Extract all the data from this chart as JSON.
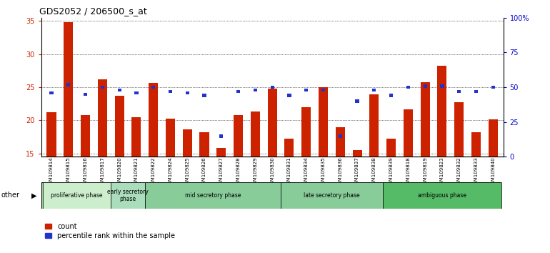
{
  "title": "GDS2052 / 206500_s_at",
  "samples": [
    "GSM109814",
    "GSM109815",
    "GSM109816",
    "GSM109817",
    "GSM109820",
    "GSM109821",
    "GSM109822",
    "GSM109824",
    "GSM109825",
    "GSM109826",
    "GSM109827",
    "GSM109828",
    "GSM109829",
    "GSM109830",
    "GSM109831",
    "GSM109834",
    "GSM109835",
    "GSM109836",
    "GSM109837",
    "GSM109838",
    "GSM109839",
    "GSM109818",
    "GSM109819",
    "GSM109823",
    "GSM109832",
    "GSM109833",
    "GSM109840"
  ],
  "count_values": [
    21.2,
    34.8,
    20.8,
    26.2,
    23.7,
    20.5,
    25.7,
    20.3,
    18.6,
    18.2,
    15.8,
    20.8,
    21.4,
    24.8,
    17.2,
    22.0,
    25.0,
    19.0,
    15.5,
    23.9,
    17.2,
    21.7,
    25.8,
    28.3,
    22.8,
    18.2,
    20.2
  ],
  "percentile_values": [
    46,
    52,
    45,
    50,
    48,
    46,
    50,
    47,
    46,
    44,
    15,
    47,
    48,
    50,
    44,
    48,
    48,
    15,
    40,
    48,
    44,
    50,
    51,
    51,
    47,
    47,
    50
  ],
  "ylim_left": [
    14.5,
    35.5
  ],
  "ylim_right": [
    0,
    100
  ],
  "yticks_left": [
    15,
    20,
    25,
    30,
    35
  ],
  "yticks_right": [
    0,
    25,
    50,
    75,
    100
  ],
  "ytick_right_labels": [
    "0",
    "25",
    "50",
    "75",
    "100%"
  ],
  "bar_color": "#cc2200",
  "percentile_color": "#2233cc",
  "bar_width": 0.55,
  "ymin": 14.5,
  "phases": [
    {
      "label": "proliferative phase",
      "start": 0,
      "end": 3,
      "color": "#bbeecc"
    },
    {
      "label": "early secretory\nphase",
      "start": 4,
      "end": 5,
      "color": "#aaddbb"
    },
    {
      "label": "mid secretory phase",
      "start": 6,
      "end": 13,
      "color": "#88dd99"
    },
    {
      "label": "late secretory phase",
      "start": 14,
      "end": 19,
      "color": "#88ee99"
    },
    {
      "label": "ambiguous phase",
      "start": 20,
      "end": 26,
      "color": "#55cc66"
    }
  ],
  "other_label": "other",
  "legend_count_label": "count",
  "legend_percentile_label": "percentile rank within the sample",
  "bg_color": "#dddddd",
  "title_fontsize": 9,
  "axis_label_color_left": "#cc2200",
  "axis_label_color_right": "#0000cc",
  "phase_bg": "#99dd99"
}
